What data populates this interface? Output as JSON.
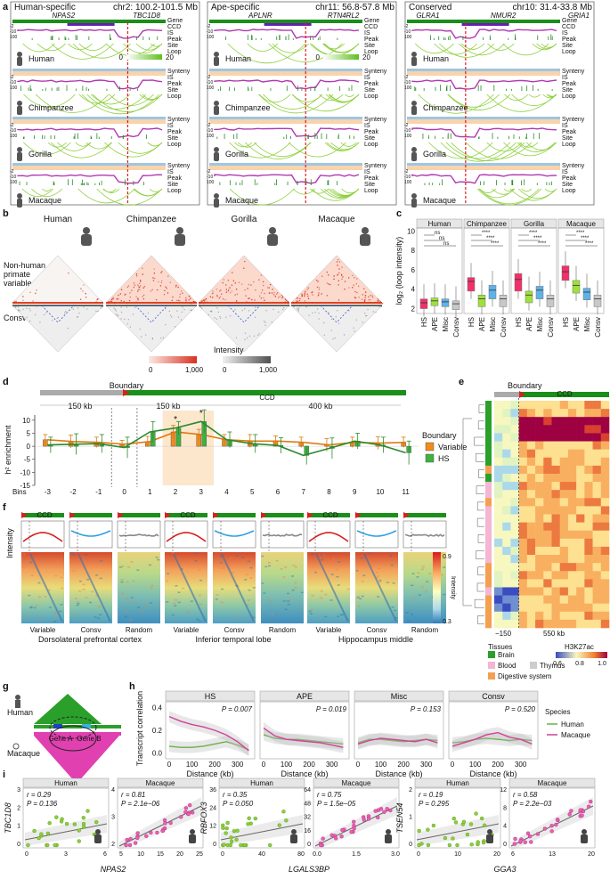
{
  "colors": {
    "hs": "#2e8b2e",
    "variable": "#f08c1e",
    "gene": "#1a8f1a",
    "ccd": "#6a1db5",
    "is": "#b03ab0",
    "loop": "#8ccf3a",
    "human": "#6ab04c",
    "macaque": "#d3409a",
    "boundary_red": "#d92020"
  },
  "panel_a": {
    "label": "a",
    "columns": [
      {
        "title": "Human-specific",
        "coords": "chr2: 100.2-101.5 Mb",
        "genes": [
          "NPAS2",
          "TBC1D8"
        ]
      },
      {
        "title": "Ape-specific",
        "coords": "chr11: 56.8-57.8 Mb",
        "genes": [
          "APLNR",
          "RTN4RL2"
        ]
      },
      {
        "title": "Conserved",
        "coords": "chr10: 31.4-33.8 Mb",
        "genes": [
          "GLRA1",
          "NMUR2",
          "GRIA1"
        ]
      }
    ],
    "species": [
      "Human",
      "Chimpanzee",
      "Gorilla",
      "Macaque"
    ],
    "track_labels_human": [
      "Gene",
      "CCD",
      "IS",
      "Peak",
      "Site",
      "Loop"
    ],
    "track_labels_other": [
      "Synteny",
      "IS",
      "Peak",
      "Site",
      "Loop"
    ],
    "is_ticks": [
      "-2",
      "-10",
      "100"
    ],
    "scale": {
      "min": "0",
      "max": "20"
    }
  },
  "panel_b": {
    "label": "b",
    "species": [
      "Human",
      "Chimpanzee",
      "Gorilla",
      "Macaque"
    ],
    "row_top": "Non-human primate variable",
    "row_bottom": "Consv",
    "legend_title": "Intensity",
    "legend_min": "0",
    "legend_max": "1,000"
  },
  "panel_c": {
    "label": "c",
    "ylabel": "log₂ (loop intensity)",
    "yticks": [
      "2",
      "4",
      "6",
      "8",
      "10"
    ],
    "facets": [
      "Human",
      "Chimpanzee",
      "Gorilla",
      "Macaque"
    ],
    "categories": [
      "HS",
      "APE",
      "Misc",
      "Consv"
    ],
    "sig_human": [
      "ns",
      "ns",
      "ns"
    ],
    "sig_other": [
      "****",
      "****",
      "****"
    ]
  },
  "panel_d": {
    "label": "d",
    "boundary": "Boundary",
    "seg_labels": [
      "150 kb",
      "150 kb",
      "400 kb"
    ],
    "ccd": "CCD",
    "ylabel": "h² enrichment",
    "yticks": [
      "10",
      "5",
      "0",
      "-5",
      "-10",
      "-15"
    ],
    "bins_label": "Bins",
    "legend_title": "Boundary",
    "legend": [
      "Variable",
      "HS"
    ],
    "chart_data": {
      "type": "bar",
      "categories": [
        "-3",
        "-2",
        "-1",
        "0",
        "1",
        "2",
        "3",
        "4",
        "5",
        "6",
        "7",
        "8",
        "9",
        "10",
        "11"
      ],
      "series": [
        {
          "name": "Variable",
          "values": [
            2.5,
            1.8,
            1.5,
            0.8,
            1.8,
            5.5,
            4.5,
            2.5,
            2.0,
            2.0,
            1.5,
            0.5,
            1.5,
            1.2,
            1.5
          ],
          "errors": [
            2.0,
            2.5,
            2.0,
            1.5,
            2.0,
            2.5,
            2.0,
            2.0,
            2.5,
            2.0,
            2.0,
            2.5,
            2.0,
            2.5,
            2.0
          ]
        },
        {
          "name": "HS",
          "values": [
            0.5,
            0.8,
            1.0,
            -0.5,
            5.5,
            7.0,
            9.5,
            2.5,
            1.0,
            0.3,
            -3.5,
            -0.8,
            2.0,
            0.5,
            -2.5
          ],
          "errors": [
            3.0,
            4.0,
            3.5,
            4.0,
            4.0,
            2.5,
            4.5,
            3.0,
            3.5,
            3.0,
            3.5,
            4.0,
            3.0,
            3.0,
            4.5
          ]
        }
      ],
      "ylim": [
        -15,
        12
      ],
      "xlabel": "Bins",
      "ylabel": "h² enrichment",
      "highlight_bins": [
        "2",
        "3"
      ]
    }
  },
  "panel_e": {
    "label": "e",
    "boundary": "Boundary",
    "ccd": "CCD",
    "minus": "150",
    "distance": "550 kb",
    "tissues_title": "Tissues",
    "tissues": [
      "Brain",
      "Blood",
      "Thymus",
      "Digestive system"
    ],
    "h3_title": "H3K27ac",
    "h3_ticks": [
      "0.6",
      "0.8",
      "1.0"
    ]
  },
  "panel_f": {
    "label": "f",
    "ylabel": "Intensity",
    "ccd": "CCD",
    "regions": [
      "Dorsolateral prefrontal cortex",
      "Inferior temporal lobe",
      "Hippocampus middle"
    ],
    "columns": [
      "Variable",
      "Consv",
      "Random"
    ],
    "legend_title": "Intensity",
    "legend_max": "0.9",
    "legend_min": "0.3"
  },
  "panel_g": {
    "label": "g",
    "human": "Human",
    "macaque": "Macaque",
    "gene_a": "Gene A",
    "gene_b": "Gene B"
  },
  "panel_h": {
    "label": "h",
    "ylabel": "Transcript correlation",
    "xlabel": "Distance (kb)",
    "xticks": [
      "0",
      "100",
      "200",
      "300"
    ],
    "yticks": [
      "0.4",
      "0.2",
      "0.0"
    ],
    "legend_title": "Species",
    "legend": [
      "Human",
      "Macaque"
    ],
    "facets": [
      {
        "name": "HS",
        "p": "P = 0.007"
      },
      {
        "name": "APE",
        "p": "P = 0.019"
      },
      {
        "name": "Misc",
        "p": "P = 0.153"
      },
      {
        "name": "Consv",
        "p": "P = 0.520"
      }
    ],
    "chart_data": {
      "type": "line",
      "x": [
        0,
        50,
        100,
        150,
        200,
        250,
        300,
        350
      ],
      "facets": [
        {
          "name": "HS",
          "series": [
            {
              "name": "Human",
              "values": [
                0.06,
                0.05,
                0.05,
                0.06,
                0.08,
                0.1,
                0.07,
                0.03
              ]
            },
            {
              "name": "Macaque",
              "values": [
                0.32,
                0.28,
                0.25,
                0.23,
                0.2,
                0.16,
                0.1,
                0.02
              ]
            }
          ]
        },
        {
          "name": "APE",
          "series": [
            {
              "name": "Human",
              "values": [
                0.16,
                0.13,
                0.12,
                0.12,
                0.11,
                0.1,
                0.09,
                0.08
              ]
            },
            {
              "name": "Macaque",
              "values": [
                0.22,
                0.15,
                0.12,
                0.11,
                0.1,
                0.09,
                0.07,
                0.05
              ]
            }
          ]
        },
        {
          "name": "Misc",
          "series": [
            {
              "name": "Human",
              "values": [
                0.09,
                0.12,
                0.12,
                0.11,
                0.1,
                0.11,
                0.12,
                0.11
              ]
            },
            {
              "name": "Macaque",
              "values": [
                0.08,
                0.11,
                0.13,
                0.12,
                0.11,
                0.1,
                0.12,
                0.09
              ]
            }
          ]
        },
        {
          "name": "Consv",
          "series": [
            {
              "name": "Human",
              "values": [
                0.09,
                0.1,
                0.12,
                0.13,
                0.12,
                0.11,
                0.12,
                0.11
              ]
            },
            {
              "name": "Macaque",
              "values": [
                0.06,
                0.09,
                0.12,
                0.16,
                0.18,
                0.14,
                0.12,
                0.08
              ]
            }
          ]
        }
      ],
      "ylim": [
        -0.05,
        0.45
      ],
      "xlabel": "Distance (kb)",
      "ylabel": "Transcript correlation"
    }
  },
  "panel_i": {
    "label": "i",
    "plots": [
      {
        "species": "Human",
        "ylabel": "TBC1D8",
        "xlabel": "NPAS2",
        "r": "r = 0.29",
        "p": "P = 0.136",
        "xticks": [
          "0",
          "3",
          "6"
        ],
        "yticks": [
          "0",
          "1",
          "2",
          "3"
        ]
      },
      {
        "species": "Macaque",
        "ylabel": "",
        "xlabel": "NPAS2",
        "r": "r = 0.81",
        "p": "P = 2.1e−06",
        "xticks": [
          "5",
          "10",
          "15",
          "20",
          "25"
        ],
        "yticks": [
          "2",
          "3",
          "4"
        ]
      },
      {
        "species": "Human",
        "ylabel": "RBFOX3",
        "xlabel": "LGALS3BP",
        "r": "r = 0.35",
        "p": "P = 0.050",
        "xticks": [
          "0",
          "40",
          "80"
        ],
        "yticks": [
          "0",
          "12",
          "24",
          "36"
        ]
      },
      {
        "species": "Macaque",
        "ylabel": "",
        "xlabel": "LGALS3BP",
        "r": "r = 0.75",
        "p": "P = 1.5e−05",
        "xticks": [
          "0.0",
          "1.5",
          "3.0"
        ],
        "yticks": [
          "0",
          "16",
          "32",
          "48",
          "64"
        ]
      },
      {
        "species": "Human",
        "ylabel": "TSEN54",
        "xlabel": "GGA3",
        "r": "r = 0.19",
        "p": "P = 0.295",
        "xticks": [
          "0",
          "10",
          "20"
        ],
        "yticks": [
          "0",
          "1",
          "2"
        ]
      },
      {
        "species": "Macaque",
        "ylabel": "",
        "xlabel": "GGA3",
        "r": "r = 0.58",
        "p": "P = 2.2e−03",
        "xticks": [
          "6",
          "13",
          "20"
        ],
        "yticks": [
          "0",
          "4",
          "8",
          "12"
        ]
      }
    ]
  }
}
